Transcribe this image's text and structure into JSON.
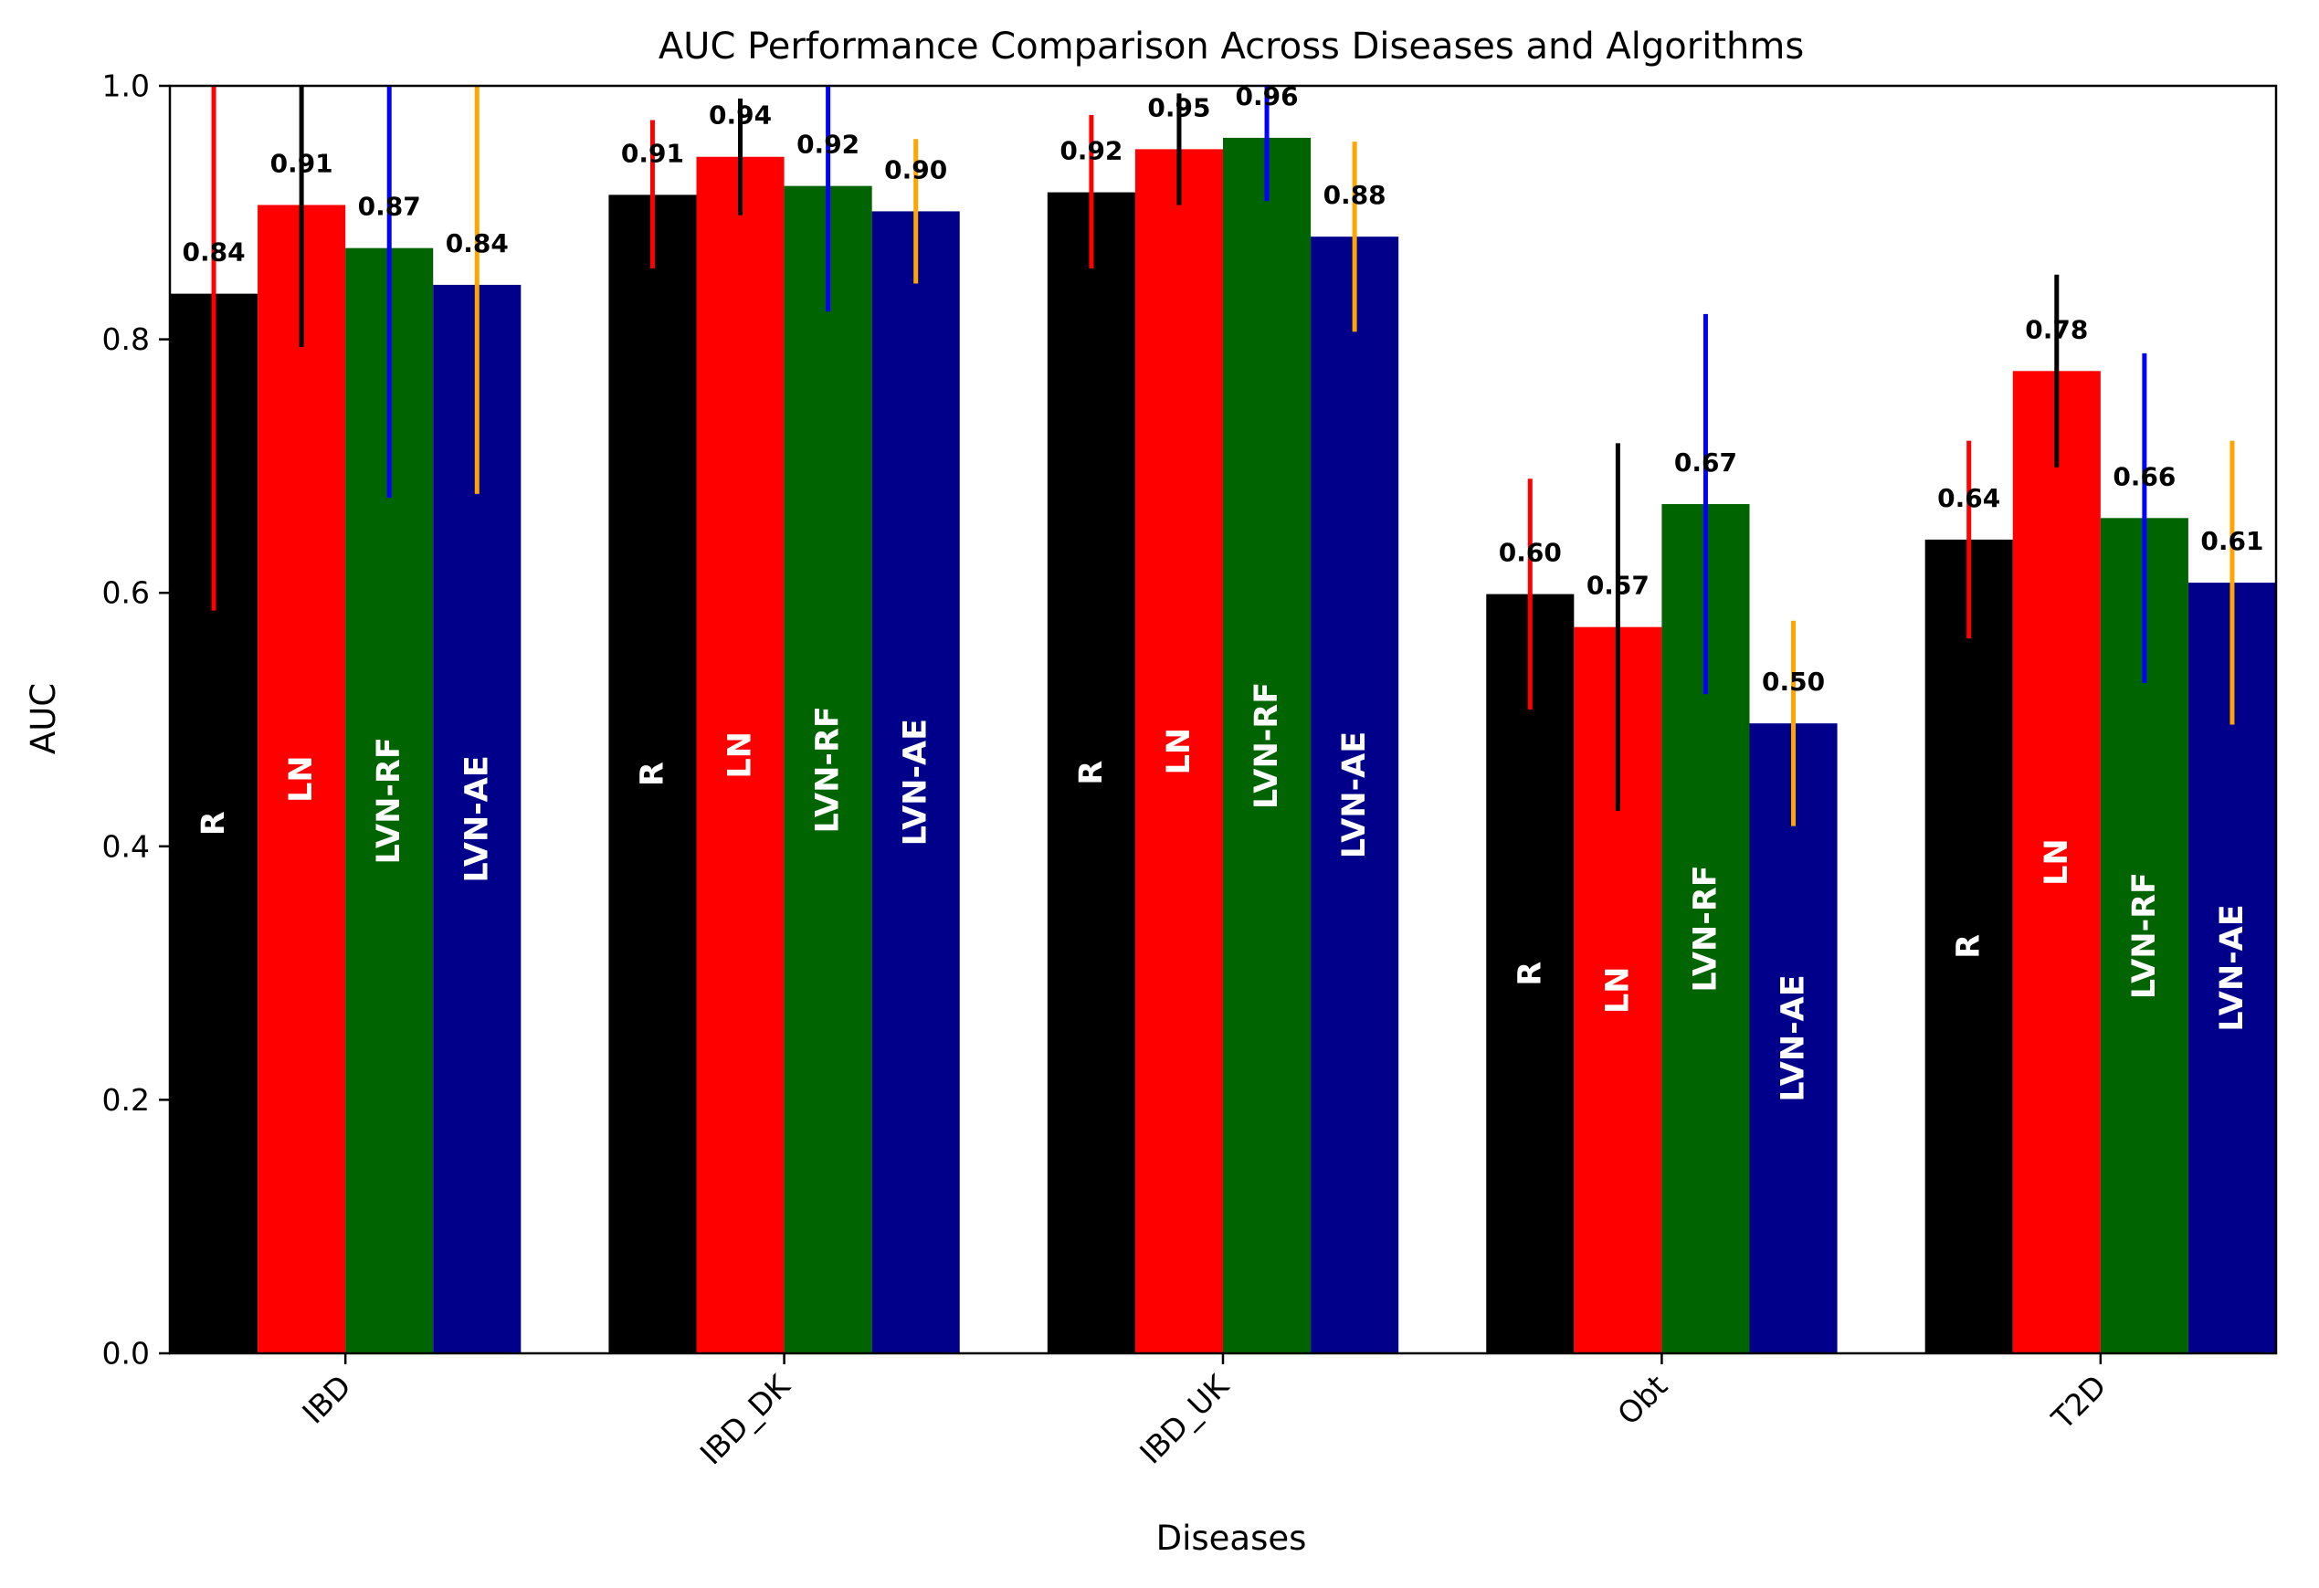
{
  "chart_data": {
    "type": "bar",
    "title": "AUC Performance Comparison Across Diseases and Algorithms",
    "xlabel": "Diseases",
    "ylabel": "AUC",
    "ylim": [
      0,
      1.0
    ],
    "yticks": [
      "0.0",
      "0.2",
      "0.4",
      "0.6",
      "0.8",
      "1.0"
    ],
    "categories": [
      "IBD",
      "IBD_DK",
      "IBD_UK",
      "Obt",
      "T2D"
    ],
    "grid": false,
    "legend": "none",
    "series": [
      {
        "name": "R",
        "color": "#000000",
        "error_color": "#ff0000",
        "values": [
          0.836,
          0.914,
          0.916,
          0.599,
          0.642
        ],
        "value_labels": [
          "0.84",
          "0.91",
          "0.92",
          "0.60",
          "0.64"
        ],
        "error_low": [
          0.586,
          0.856,
          0.856,
          0.508,
          0.564
        ],
        "error_high": [
          1.09,
          0.973,
          0.977,
          0.69,
          0.72
        ]
      },
      {
        "name": "LN",
        "color": "#ff0000",
        "error_color": "#000000",
        "values": [
          0.906,
          0.944,
          0.95,
          0.573,
          0.775
        ],
        "value_labels": [
          "0.91",
          "0.94",
          "0.95",
          "0.57",
          "0.78"
        ],
        "error_low": [
          0.794,
          0.898,
          0.906,
          0.428,
          0.699
        ],
        "error_high": [
          1.02,
          0.99,
          0.994,
          0.718,
          0.851
        ]
      },
      {
        "name": "LVN-RF",
        "color": "#006400",
        "error_color": "#0000ff",
        "values": [
          0.872,
          0.921,
          0.959,
          0.67,
          0.659
        ],
        "value_labels": [
          "0.87",
          "0.92",
          "0.96",
          "0.67",
          "0.66"
        ],
        "error_low": [
          0.675,
          0.822,
          0.909,
          0.52,
          0.529
        ],
        "error_high": [
          1.07,
          1.02,
          1.01,
          0.82,
          0.789
        ]
      },
      {
        "name": "LVN-AE",
        "color": "#00008b",
        "error_color": "#ffa500",
        "values": [
          0.843,
          0.901,
          0.881,
          0.497,
          0.608
        ],
        "value_labels": [
          "0.84",
          "0.90",
          "0.88",
          "0.50",
          "0.61"
        ],
        "error_low": [
          0.678,
          0.844,
          0.806,
          0.416,
          0.496
        ],
        "error_high": [
          1.01,
          0.958,
          0.956,
          0.578,
          0.72
        ]
      }
    ]
  }
}
